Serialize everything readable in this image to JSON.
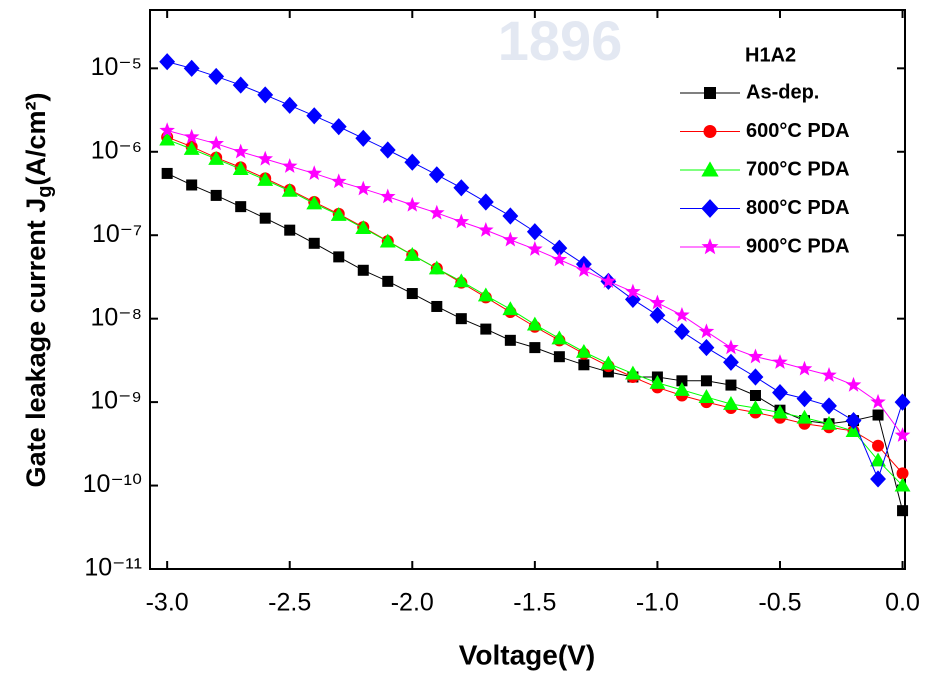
{
  "chart_data": {
    "type": "line",
    "x_label": "Voltage(V)",
    "y_label": {
      "text": "Gate leakage current J",
      "sub": "g",
      "unit": "(A/cm²)"
    },
    "watermark": "1896",
    "legend_title": "H1A2",
    "legend": "upper right",
    "log_y": true,
    "xlim": [
      -3.07,
      0.01
    ],
    "ylim": [
      1e-11,
      5e-05
    ],
    "xticks": [
      {
        "value": -3,
        "label": "-3.0"
      },
      -2.5,
      {
        "value": -2,
        "label": "-2.0"
      },
      -1.5,
      {
        "value": -1,
        "label": "-1.0"
      },
      -0.5,
      {
        "value": 0,
        "label": "0.0"
      }
    ],
    "yticks": [
      {
        "value": 1e-11,
        "label": "10⁻¹¹"
      },
      {
        "value": 1e-10,
        "label": "10⁻¹⁰"
      },
      {
        "value": 1e-09,
        "label": "10⁻⁹"
      },
      {
        "value": 1e-08,
        "label": "10⁻⁸"
      },
      {
        "value": 1e-07,
        "label": "10⁻⁷"
      },
      {
        "value": 1e-06,
        "label": "10⁻⁶"
      },
      {
        "value": 1e-05,
        "label": "10⁻⁵"
      }
    ],
    "x": [
      -3.0,
      -2.9,
      -2.8,
      -2.7,
      -2.6,
      -2.5,
      -2.4,
      -2.3,
      -2.2,
      -2.1,
      -2.0,
      -1.9,
      -1.8,
      -1.7,
      -1.6,
      -1.5,
      -1.4,
      -1.3,
      -1.2,
      -1.1,
      -1.0,
      -0.9,
      -0.8,
      -0.7,
      -0.6,
      -0.5,
      -0.4,
      -0.3,
      -0.2,
      -0.1,
      0.0
    ],
    "series": [
      {
        "name": "As-dep.",
        "color": "#000000",
        "marker": "square",
        "values": [
          5.5e-07,
          4e-07,
          3e-07,
          2.2e-07,
          1.6e-07,
          1.15e-07,
          8e-08,
          5.5e-08,
          3.8e-08,
          2.8e-08,
          2e-08,
          1.4e-08,
          1e-08,
          7.5e-09,
          5.5e-09,
          4.5e-09,
          3.5e-09,
          2.8e-09,
          2.3e-09,
          2e-09,
          2e-09,
          1.8e-09,
          1.8e-09,
          1.6e-09,
          1.2e-09,
          8e-10,
          6e-10,
          5.5e-10,
          6e-10,
          7e-10,
          5e-11
        ]
      },
      {
        "name": "600°C PDA",
        "color": "#ff0000",
        "marker": "circle",
        "values": [
          1.5e-06,
          1.15e-06,
          8.5e-07,
          6.5e-07,
          4.8e-07,
          3.5e-07,
          2.5e-07,
          1.8e-07,
          1.25e-07,
          8.5e-08,
          5.8e-08,
          4e-08,
          2.7e-08,
          1.8e-08,
          1.2e-08,
          8e-09,
          5.5e-09,
          3.8e-09,
          2.7e-09,
          2e-09,
          1.5e-09,
          1.2e-09,
          1e-09,
          8.5e-10,
          7.5e-10,
          6.5e-10,
          5.5e-10,
          5e-10,
          4.5e-10,
          3e-10,
          1.4e-10
        ]
      },
      {
        "name": "700°C PDA",
        "color": "#00ff00",
        "marker": "triangle",
        "values": [
          1.4e-06,
          1.08e-06,
          8.2e-07,
          6.2e-07,
          4.6e-07,
          3.4e-07,
          2.4e-07,
          1.75e-07,
          1.22e-07,
          8.4e-08,
          5.8e-08,
          4e-08,
          2.8e-08,
          1.9e-08,
          1.3e-08,
          8.5e-09,
          5.8e-09,
          4e-09,
          2.9e-09,
          2.2e-09,
          1.7e-09,
          1.4e-09,
          1.15e-09,
          9.5e-10,
          8.5e-10,
          7.5e-10,
          6.5e-10,
          5.5e-10,
          4.5e-10,
          2e-10,
          1e-10
        ]
      },
      {
        "name": "800°C PDA",
        "color": "#0000ff",
        "marker": "diamond",
        "values": [
          1.2e-05,
          1e-05,
          8e-06,
          6.3e-06,
          4.8e-06,
          3.6e-06,
          2.7e-06,
          2e-06,
          1.45e-06,
          1.05e-06,
          7.5e-07,
          5.3e-07,
          3.7e-07,
          2.5e-07,
          1.7e-07,
          1.1e-07,
          7e-08,
          4.5e-08,
          2.8e-08,
          1.7e-08,
          1.1e-08,
          7e-09,
          4.5e-09,
          3e-09,
          2e-09,
          1.3e-09,
          1.1e-09,
          9e-10,
          6e-10,
          1.2e-10,
          1e-09
        ]
      },
      {
        "name": "900°C PDA",
        "color": "#ff00ff",
        "marker": "star",
        "values": [
          1.8e-06,
          1.5e-06,
          1.25e-06,
          1e-06,
          8.2e-07,
          6.7e-07,
          5.5e-07,
          4.4e-07,
          3.6e-07,
          2.9e-07,
          2.3e-07,
          1.85e-07,
          1.45e-07,
          1.15e-07,
          8.8e-08,
          6.8e-08,
          5.1e-08,
          3.8e-08,
          2.8e-08,
          2.1e-08,
          1.55e-08,
          1.1e-08,
          7e-09,
          4.5e-09,
          3.5e-09,
          3e-09,
          2.5e-09,
          2.1e-09,
          1.6e-09,
          1e-09,
          4e-10
        ]
      }
    ]
  }
}
